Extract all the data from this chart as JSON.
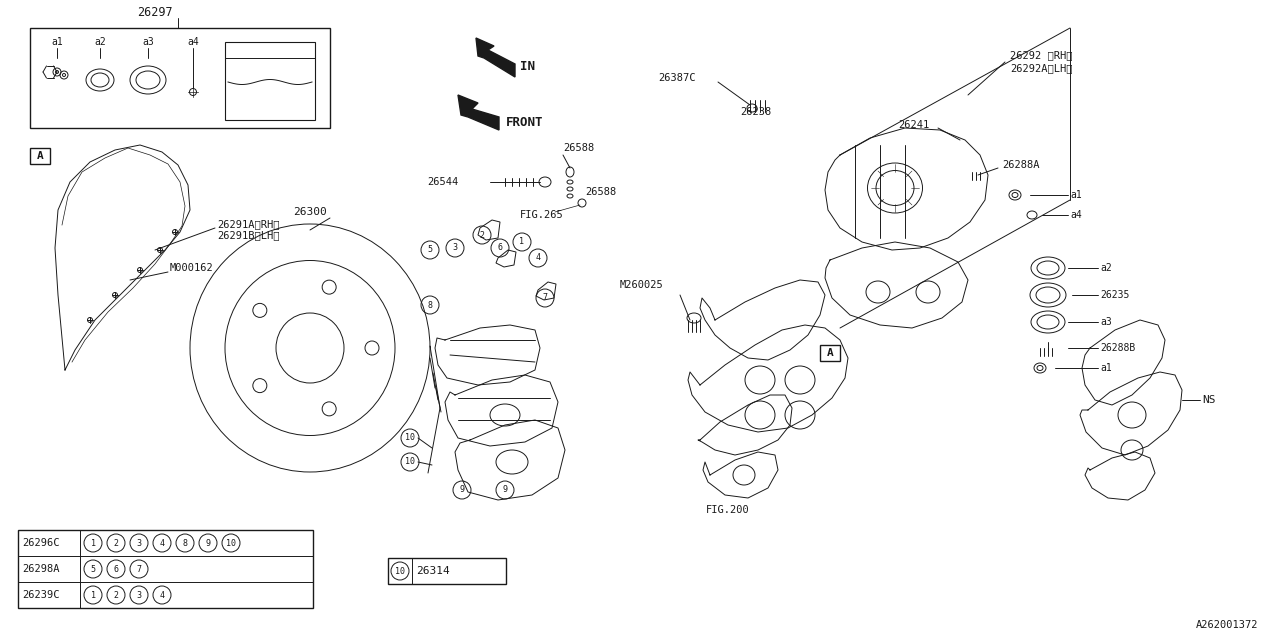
{
  "bg_color": "#ffffff",
  "line_color": "#1a1a1a",
  "fig_id": "A262001372",
  "table_rows": [
    {
      "part": "26296C",
      "circles": [
        "1",
        "2",
        "3",
        "4",
        "8",
        "9",
        "10"
      ]
    },
    {
      "part": "26298A",
      "circles": [
        "5",
        "6",
        "7"
      ]
    },
    {
      "part": "26239C",
      "circles": [
        "1",
        "2",
        "3",
        "4"
      ]
    }
  ]
}
